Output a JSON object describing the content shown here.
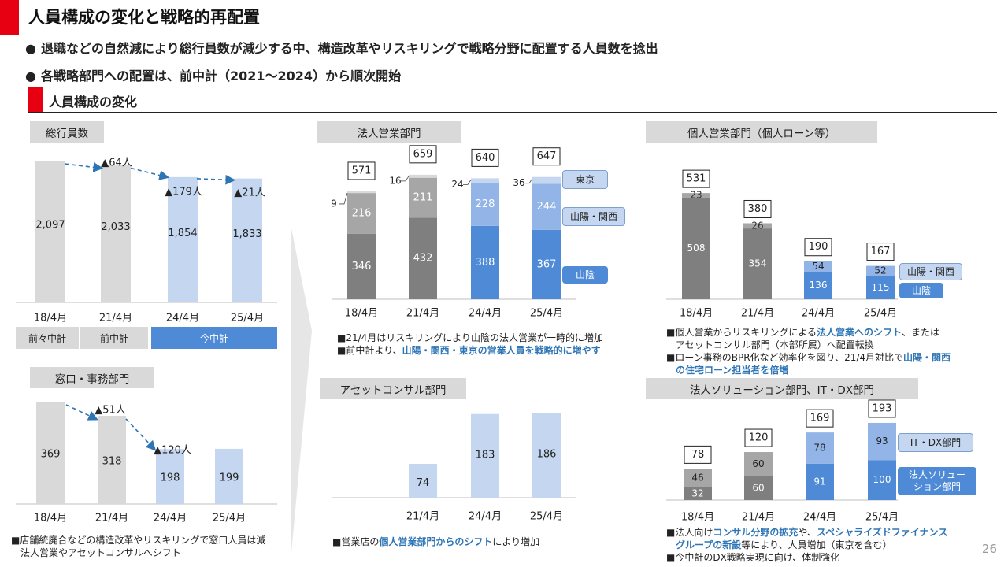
{
  "page": {
    "title": "人員構成の変化と戦略的再配置",
    "bullets": [
      "退職などの自然減により総行員数が減少する中、構造改革やリスキリングで戦略分野に配置する人員数を捻出",
      "各戦略部門への配置は、前中計（2021～2024）から順次開始"
    ],
    "section_title": "人員構成の変化",
    "page_number": "26"
  },
  "colors": {
    "red": "#e60012",
    "gray_bar": "#d9d9d9",
    "light_blue": "#c5d7f0",
    "dark_gray": "#7f7f7f",
    "mid_gray": "#a6a6a6",
    "blue": "#4e8ad6",
    "mid_blue": "#92b4e6"
  },
  "panels": {
    "total": {
      "title": "総行員数",
      "plans": [
        "前々中計",
        "前中計",
        "今中計"
      ],
      "note": [
        "■店舗統廃合などの構造改革やリスキリングで窓口人員は減",
        "法人営業やアセットコンサルへシフト"
      ]
    },
    "window": {
      "title": "窓口・事務部門"
    },
    "corporate": {
      "title": "法人営業部門",
      "legend": [
        "東京",
        "山陽・関西",
        "山陰"
      ],
      "note1_prefix": "■21/4月はリスキリングにより山陰の法人営業が一時的に増加",
      "note2_prefix": "■前中計より、",
      "note2_highlight": "山陽・関西・東京の営業人員を戦略的に増やす"
    },
    "asset": {
      "title": "アセットコンサル部門",
      "note_prefix": "■営業店の",
      "note_highlight": "個人営業部門からのシフト",
      "note_suffix": "により増加"
    },
    "personal": {
      "title": "個人営業部門（個人ローン等）",
      "legend": [
        "山陽・関西",
        "山陰"
      ],
      "note1_a": "■個人営業からリスキリングによる",
      "note1_hl": "法人営業へのシフト",
      "note1_b": "、または",
      "note1_c": "アセットコンサル部門（本部所属）へ配置転換",
      "note2_a": "■ローン事務のBPR化など効率化を図り、21/4月対比で",
      "note2_hl": "山陽・関西",
      "note2_hl2": "の住宅ローン担当者を倍増"
    },
    "solution": {
      "title": "法人ソリューション部門、IT・DX部門",
      "legend": [
        "IT・DX部門",
        "法人ソリュー\nション部門"
      ],
      "note1_a": "■法人向け",
      "note1_hl": "コンサル分野の拡充",
      "note1_b": "や、",
      "note1_hl2": "スペシャライズドファイナンス",
      "note1_hl3": "グループの新設",
      "note1_c": "等により、人員増加（東京を含む）",
      "note2": "■今中計のDX戦略実現に向け、体制強化"
    }
  },
  "chart_data": [
    {
      "name": "総行員数",
      "type": "bar",
      "categories": [
        "18/4月",
        "21/4月",
        "24/4月",
        "25/4月"
      ],
      "values": [
        2097,
        2033,
        1854,
        1833
      ],
      "value_labels": [
        "2,097",
        "2,033",
        "1,854",
        "1,833"
      ],
      "changes": [
        "▲64人",
        "▲179人",
        "▲21人"
      ]
    },
    {
      "name": "窓口・事務部門",
      "type": "bar",
      "categories": [
        "18/4月",
        "21/4月",
        "24/4月",
        "25/4月"
      ],
      "values": [
        369,
        318,
        198,
        199
      ],
      "changes": [
        "▲51人",
        "▲120人"
      ]
    },
    {
      "name": "法人営業部門",
      "type": "bar",
      "stacked": true,
      "categories": [
        "18/4月",
        "21/4月",
        "24/4月",
        "25/4月"
      ],
      "series": [
        {
          "name": "山陰",
          "values": [
            346,
            432,
            388,
            367
          ]
        },
        {
          "name": "山陽・関西",
          "values": [
            216,
            211,
            228,
            244
          ]
        },
        {
          "name": "東京",
          "values": [
            9,
            16,
            24,
            36
          ]
        }
      ],
      "totals": [
        571,
        659,
        640,
        647
      ]
    },
    {
      "name": "アセットコンサル部門",
      "type": "bar",
      "categories": [
        "21/4月",
        "24/4月",
        "25/4月"
      ],
      "values": [
        74,
        183,
        186
      ]
    },
    {
      "name": "個人営業部門（個人ローン等）",
      "type": "bar",
      "stacked": true,
      "categories": [
        "18/4月",
        "21/4月",
        "24/4月",
        "25/4月"
      ],
      "series": [
        {
          "name": "山陰",
          "values": [
            508,
            354,
            136,
            115
          ]
        },
        {
          "name": "山陽・関西",
          "values": [
            23,
            26,
            54,
            52
          ]
        }
      ],
      "totals": [
        531,
        380,
        190,
        167
      ]
    },
    {
      "name": "法人ソリューション部門、IT・DX部門",
      "type": "bar",
      "stacked": true,
      "categories": [
        "18/4月",
        "21/4月",
        "24/4月",
        "25/4月"
      ],
      "series": [
        {
          "name": "法人ソリューション部門",
          "values": [
            32,
            60,
            91,
            100
          ]
        },
        {
          "name": "IT・DX部門",
          "values": [
            46,
            60,
            78,
            93
          ]
        }
      ],
      "totals": [
        78,
        120,
        169,
        193
      ]
    }
  ]
}
